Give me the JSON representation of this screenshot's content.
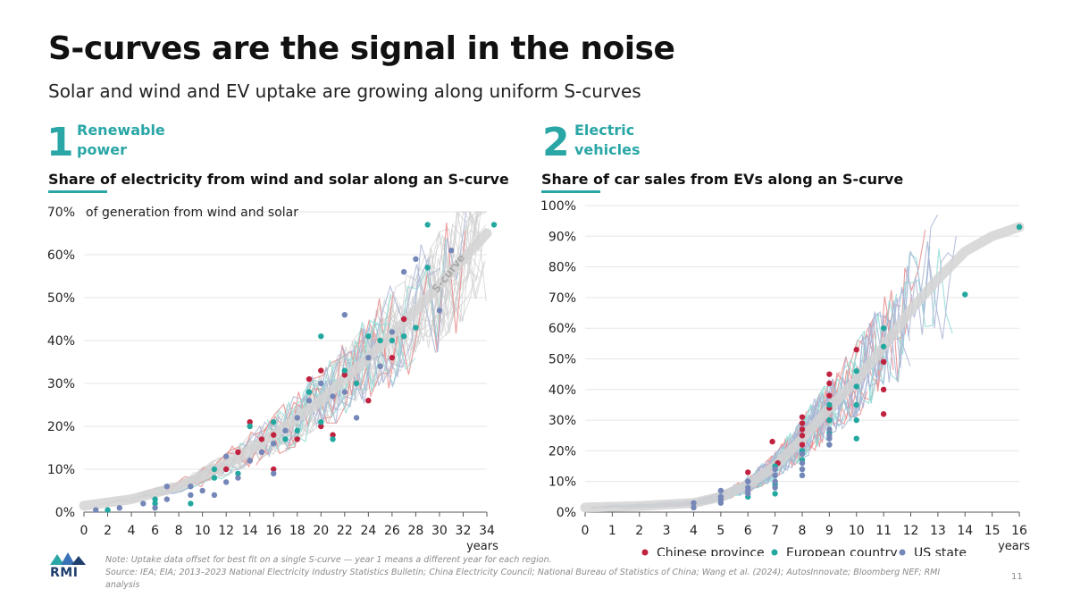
{
  "title": "S-curves are the signal in the noise",
  "subtitle": "Solar and wind and EV uptake are growing along uniform S-curves",
  "colors": {
    "accent": "#2aa6a6",
    "chinese": "#c0223f",
    "european": "#23a8a0",
    "us": "#7587b8",
    "scurve": "#d3d3d3"
  },
  "sections": [
    {
      "number": "1",
      "label_line1": "Renewable",
      "label_line2": "power"
    },
    {
      "number": "2",
      "label_line1": "Electric",
      "label_line2": "vehicles"
    }
  ],
  "chart_data": [
    {
      "type": "scatter",
      "title": "Share of electricity from wind and solar along an S-curve",
      "ylabel": "of generation from wind and solar",
      "xlabel": "years",
      "curve_label": "S-curve",
      "xlim": [
        0,
        34
      ],
      "ylim": [
        0,
        70
      ],
      "x_ticks": [
        0,
        2,
        4,
        6,
        8,
        10,
        12,
        14,
        16,
        18,
        20,
        22,
        24,
        26,
        28,
        30,
        32,
        34
      ],
      "y_ticks": [
        0,
        10,
        20,
        30,
        40,
        50,
        60,
        70
      ],
      "y_tick_labels": [
        "0%",
        "10%",
        "20%",
        "30%",
        "40%",
        "50%",
        "60%",
        "70%"
      ],
      "s_curve": {
        "x": [
          0,
          4,
          8,
          12,
          16,
          20,
          24,
          28,
          31,
          34
        ],
        "y": [
          1.5,
          3,
          6,
          11,
          18,
          26,
          36,
          47,
          56,
          65
        ]
      },
      "series": [
        {
          "name": "Chinese province",
          "x": [
            12,
            13,
            14,
            14,
            15,
            16,
            16,
            18,
            19,
            20,
            20,
            21,
            22,
            24,
            26,
            27
          ],
          "y": [
            10,
            14,
            21,
            12,
            17,
            18,
            10,
            17,
            31,
            33,
            20,
            18,
            32,
            26,
            36,
            45
          ]
        },
        {
          "name": "European country",
          "x": [
            2,
            6,
            6,
            9,
            11,
            11,
            13,
            14,
            16,
            17,
            18,
            19,
            20,
            20,
            21,
            22,
            23,
            24,
            25,
            26,
            27,
            28,
            29,
            29,
            35
          ],
          "y": [
            0.5,
            3,
            2,
            2,
            8,
            10,
            9,
            20,
            21,
            17,
            19,
            28,
            41,
            21,
            17,
            33,
            30,
            41,
            40,
            40,
            41,
            43,
            67,
            57,
            67
          ]
        },
        {
          "name": "US state",
          "x": [
            1,
            3,
            5,
            6,
            7,
            7,
            9,
            9,
            10,
            11,
            12,
            12,
            13,
            14,
            15,
            16,
            16,
            17,
            18,
            19,
            20,
            21,
            22,
            22,
            23,
            24,
            25,
            26,
            27,
            28,
            30,
            31
          ],
          "y": [
            0.5,
            1,
            2,
            1,
            6,
            3,
            6,
            4,
            5,
            4,
            13,
            7,
            8,
            12,
            14,
            16,
            9,
            19,
            22,
            26,
            30,
            27,
            46,
            28,
            22,
            36,
            34,
            42,
            56,
            59,
            47,
            61
          ]
        }
      ]
    },
    {
      "type": "scatter",
      "title": "Share of car sales from EVs along an S-curve",
      "xlabel": "years",
      "xlim": [
        0,
        16
      ],
      "ylim": [
        0,
        100
      ],
      "x_ticks": [
        0,
        1,
        2,
        3,
        4,
        5,
        6,
        7,
        8,
        9,
        10,
        11,
        12,
        13,
        14,
        15,
        16
      ],
      "y_ticks": [
        0,
        10,
        20,
        30,
        40,
        50,
        60,
        70,
        80,
        90,
        100
      ],
      "y_tick_labels": [
        "0%",
        "10%",
        "20%",
        "30%",
        "40%",
        "50%",
        "60%",
        "70%",
        "80%",
        "90%",
        "100%"
      ],
      "s_curve": {
        "x": [
          0,
          2,
          4,
          5,
          6,
          7,
          8,
          9,
          10,
          11,
          12,
          13,
          14,
          15,
          16
        ],
        "y": [
          1.5,
          2,
          3,
          5,
          9,
          15,
          24,
          34,
          43,
          54,
          66,
          76,
          85,
          90,
          93
        ]
      },
      "legend": [
        "Chinese province",
        "European country",
        "US state"
      ],
      "series": [
        {
          "name": "Chinese province",
          "x": [
            6,
            7,
            7,
            8,
            8,
            8,
            8,
            8,
            9,
            9,
            9,
            9,
            9,
            10,
            11,
            11,
            11
          ],
          "y": [
            13,
            23,
            16,
            31,
            29,
            27,
            25,
            22,
            45,
            42,
            38,
            34,
            30,
            53,
            49,
            40,
            32
          ],
          "jitter": [
            0,
            -0.1,
            0.1,
            0,
            0,
            0,
            0,
            0,
            0,
            0,
            0,
            0,
            0,
            0,
            0,
            0,
            0
          ]
        },
        {
          "name": "European country",
          "x": [
            6,
            7,
            7,
            7,
            7,
            8,
            8,
            8,
            8,
            9,
            9,
            9,
            9,
            10,
            10,
            10,
            10,
            10,
            11,
            11,
            14,
            16
          ],
          "y": [
            5,
            15,
            12,
            9,
            6,
            20,
            17,
            14,
            12,
            35,
            30,
            26,
            22,
            46,
            41,
            35,
            30,
            24,
            60,
            54,
            71,
            93
          ],
          "jitter": [
            0,
            0,
            0,
            0,
            0,
            0,
            0,
            0,
            0,
            0,
            0,
            0,
            0,
            0,
            0,
            0,
            0,
            0,
            0,
            0,
            0,
            0
          ]
        },
        {
          "name": "US state",
          "x": [
            4,
            4,
            5,
            5,
            5,
            5,
            6,
            6,
            6,
            6,
            7,
            7,
            7,
            7,
            8,
            8,
            8,
            8,
            9,
            9,
            9,
            9
          ],
          "y": [
            3,
            1.5,
            7,
            5,
            4,
            3,
            10,
            8,
            7,
            6,
            14,
            12,
            10,
            8,
            19,
            16,
            14,
            12,
            27,
            25,
            24,
            22
          ]
        }
      ]
    }
  ],
  "footnote": {
    "note": "Note: Uptake data offset for best fit on a single S-curve — year 1 means a different year for each region.",
    "source": "Source: IEA; EIA; 2013–2023 National Electricity Industry Statistics Bulletin; China Electricity Council; National Bureau of Statistics of China; Wang et al. (2024); AutosInnovate; Bloomberg NEF; RMI",
    "source2": "analysis"
  },
  "logo": "RMI",
  "page_number": "11"
}
